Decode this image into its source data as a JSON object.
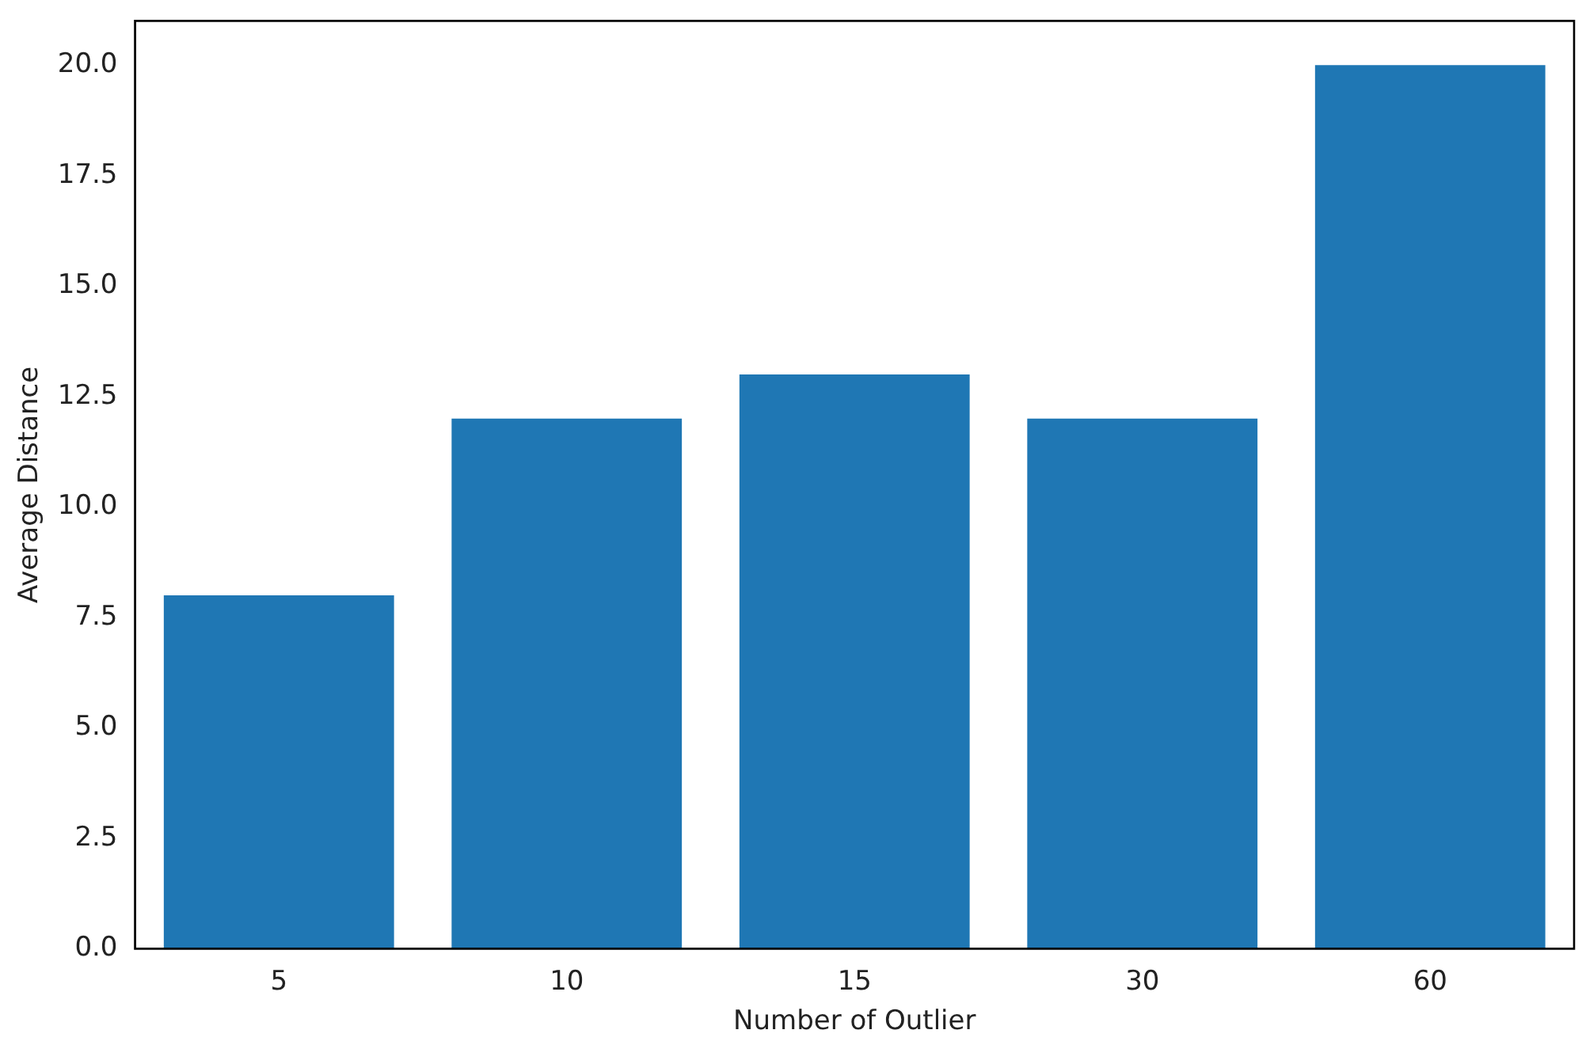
{
  "chart_data": {
    "type": "bar",
    "xlabel": "Number of Outlier",
    "ylabel": "Average Distance",
    "categories": [
      "5",
      "10",
      "15",
      "30",
      "60"
    ],
    "values": [
      8,
      12,
      13,
      12,
      20
    ],
    "color": "#1f77b4",
    "ylim": [
      0,
      21
    ],
    "yticks": [
      {
        "value": 0,
        "label": "0.0"
      },
      {
        "value": 2.5,
        "label": "2.5"
      },
      {
        "value": 5,
        "label": "5.0"
      },
      {
        "value": 7.5,
        "label": "7.5"
      },
      {
        "value": 10,
        "label": "10.0"
      },
      {
        "value": 12.5,
        "label": "12.5"
      },
      {
        "value": 15,
        "label": "15.0"
      },
      {
        "value": 17.5,
        "label": "17.5"
      },
      {
        "value": 20,
        "label": "20.0"
      }
    ],
    "grid": false,
    "legend": false
  }
}
